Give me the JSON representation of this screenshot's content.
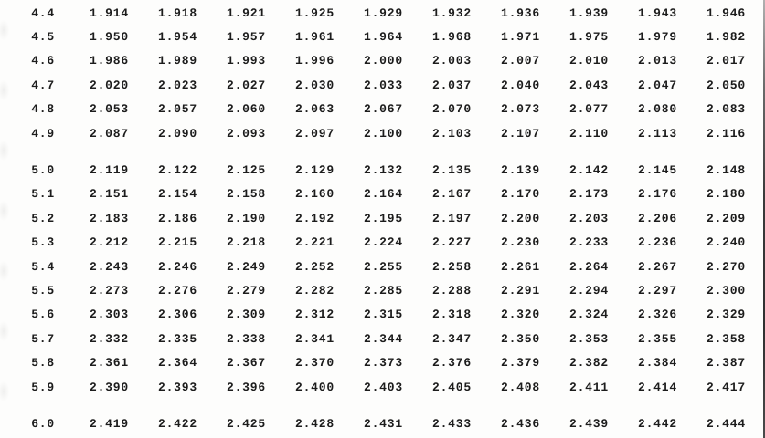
{
  "styles": {
    "ink_color": "#1c1c1c",
    "paper_color": "#fdfdfc",
    "edge_line_color": "#3a3a3a"
  },
  "table": {
    "description_of_visible_content": "numeric lookup table, row labels 4.4 to 6.0 with ten value columns",
    "rows": [
      {
        "label": "4.4",
        "group_start": false,
        "values": [
          "1.914",
          "1.918",
          "1.921",
          "1.925",
          "1.929",
          "1.932",
          "1.936",
          "1.939",
          "1.943",
          "1.946"
        ]
      },
      {
        "label": "4.5",
        "group_start": false,
        "values": [
          "1.950",
          "1.954",
          "1.957",
          "1.961",
          "1.964",
          "1.968",
          "1.971",
          "1.975",
          "1.979",
          "1.982"
        ]
      },
      {
        "label": "4.6",
        "group_start": false,
        "values": [
          "1.986",
          "1.989",
          "1.993",
          "1.996",
          "2.000",
          "2.003",
          "2.007",
          "2.010",
          "2.013",
          "2.017"
        ]
      },
      {
        "label": "4.7",
        "group_start": false,
        "values": [
          "2.020",
          "2.023",
          "2.027",
          "2.030",
          "2.033",
          "2.037",
          "2.040",
          "2.043",
          "2.047",
          "2.050"
        ]
      },
      {
        "label": "4.8",
        "group_start": false,
        "values": [
          "2.053",
          "2.057",
          "2.060",
          "2.063",
          "2.067",
          "2.070",
          "2.073",
          "2.077",
          "2.080",
          "2.083"
        ]
      },
      {
        "label": "4.9",
        "group_start": false,
        "values": [
          "2.087",
          "2.090",
          "2.093",
          "2.097",
          "2.100",
          "2.103",
          "2.107",
          "2.110",
          "2.113",
          "2.116"
        ]
      },
      {
        "label": "5.0",
        "group_start": true,
        "values": [
          "2.119",
          "2.122",
          "2.125",
          "2.129",
          "2.132",
          "2.135",
          "2.139",
          "2.142",
          "2.145",
          "2.148"
        ]
      },
      {
        "label": "5.1",
        "group_start": false,
        "values": [
          "2.151",
          "2.154",
          "2.158",
          "2.160",
          "2.164",
          "2.167",
          "2.170",
          "2.173",
          "2.176",
          "2.180"
        ]
      },
      {
        "label": "5.2",
        "group_start": false,
        "values": [
          "2.183",
          "2.186",
          "2.190",
          "2.192",
          "2.195",
          "2.197",
          "2.200",
          "2.203",
          "2.206",
          "2.209"
        ]
      },
      {
        "label": "5.3",
        "group_start": false,
        "values": [
          "2.212",
          "2.215",
          "2.218",
          "2.221",
          "2.224",
          "2.227",
          "2.230",
          "2.233",
          "2.236",
          "2.240"
        ]
      },
      {
        "label": "5.4",
        "group_start": false,
        "values": [
          "2.243",
          "2.246",
          "2.249",
          "2.252",
          "2.255",
          "2.258",
          "2.261",
          "2.264",
          "2.267",
          "2.270"
        ]
      },
      {
        "label": "5.5",
        "group_start": false,
        "values": [
          "2.273",
          "2.276",
          "2.279",
          "2.282",
          "2.285",
          "2.288",
          "2.291",
          "2.294",
          "2.297",
          "2.300"
        ]
      },
      {
        "label": "5.6",
        "group_start": false,
        "values": [
          "2.303",
          "2.306",
          "2.309",
          "2.312",
          "2.315",
          "2.318",
          "2.320",
          "2.324",
          "2.326",
          "2.329"
        ]
      },
      {
        "label": "5.7",
        "group_start": false,
        "values": [
          "2.332",
          "2.335",
          "2.338",
          "2.341",
          "2.344",
          "2.347",
          "2.350",
          "2.353",
          "2.355",
          "2.358"
        ]
      },
      {
        "label": "5.8",
        "group_start": false,
        "values": [
          "2.361",
          "2.364",
          "2.367",
          "2.370",
          "2.373",
          "2.376",
          "2.379",
          "2.382",
          "2.384",
          "2.387"
        ]
      },
      {
        "label": "5.9",
        "group_start": false,
        "values": [
          "2.390",
          "2.393",
          "2.396",
          "2.400",
          "2.403",
          "2.405",
          "2.408",
          "2.411",
          "2.414",
          "2.417"
        ]
      },
      {
        "label": "6.0",
        "group_start": true,
        "values": [
          "2.419",
          "2.422",
          "2.425",
          "2.428",
          "2.431",
          "2.433",
          "2.436",
          "2.439",
          "2.442",
          "2.444"
        ]
      }
    ]
  }
}
